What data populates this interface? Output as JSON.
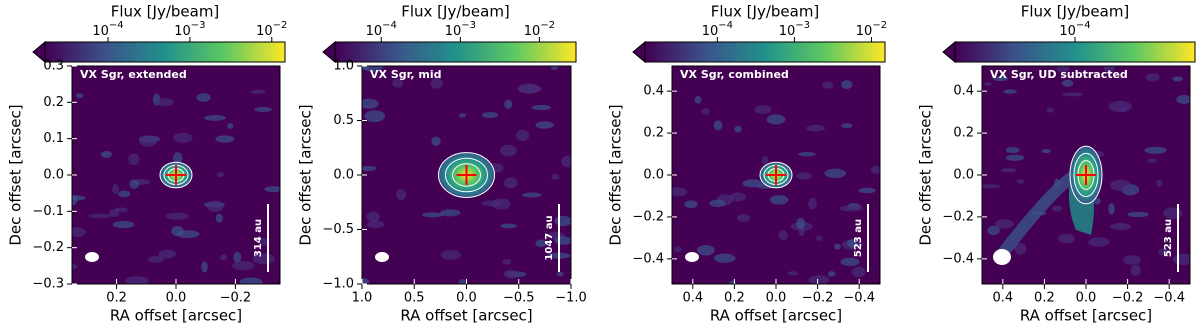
{
  "chart_data": [
    {
      "type": "image",
      "title": "VX Sgr, extended",
      "xlabel": "RA offset [arcsec]",
      "ylabel": "Dec offset [arcsec]",
      "xlim": [
        0.35,
        -0.35
      ],
      "ylim": [
        -0.3,
        0.3
      ],
      "xticks": [
        0.2,
        {
          "value": 0,
          "label": "0.0"
        },
        {
          "value": -0.2,
          "label": "−0.2"
        }
      ],
      "yticks": [
        {
          "value": -0.3,
          "label": "−0.3"
        },
        {
          "value": -0.2,
          "label": "−0.2"
        },
        {
          "value": -0.1,
          "label": "−0.1"
        },
        {
          "value": 0,
          "label": "0.0"
        },
        0.1,
        0.2,
        0.3
      ],
      "scalebar_label": "314 au",
      "colorbar": {
        "label": "Flux [Jy/beam]",
        "log": true,
        "lim": [
          1.7e-05,
          0.0145
        ],
        "colors": [
          "#440154",
          "#3b528b",
          "#21918c",
          "#5ec962",
          "#fde725"
        ],
        "ticks": [
          {
            "value": 0.0001,
            "label": "10−4"
          },
          {
            "value": 0.001,
            "label": "10−3"
          },
          {
            "value": 0.01,
            "label": "10−2"
          }
        ]
      }
    },
    {
      "type": "image",
      "title": "VX Sgr, mid",
      "xlabel": "RA offset [arcsec]",
      "ylabel": "Dec offset [arcsec]",
      "xlim": [
        1,
        -1
      ],
      "ylim": [
        -1,
        1
      ],
      "xticks": [
        {
          "value": 1,
          "label": "1.0"
        },
        0.5,
        {
          "value": 0,
          "label": "0.0"
        },
        {
          "value": -0.5,
          "label": "−0.5"
        },
        {
          "value": -1,
          "label": "−1.0"
        }
      ],
      "yticks": [
        {
          "value": -1,
          "label": "−1.0"
        },
        {
          "value": -0.5,
          "label": "−0.5"
        },
        {
          "value": 0,
          "label": "0.0"
        },
        0.5,
        {
          "value": 1,
          "label": "1.0"
        }
      ],
      "scalebar_label": "1047 au",
      "colorbar": {
        "label": "Flux [Jy/beam]",
        "log": true,
        "lim": [
          2.6e-05,
          0.029
        ],
        "colors": [
          "#440154",
          "#3b528b",
          "#21918c",
          "#5ec962",
          "#fde725"
        ],
        "ticks": [
          {
            "value": 0.0001,
            "label": "10−4"
          },
          {
            "value": 0.001,
            "label": "10−3"
          },
          {
            "value": 0.01,
            "label": "10−2"
          }
        ]
      }
    },
    {
      "type": "image",
      "title": "VX Sgr, combined",
      "xlabel": "RA offset [arcsec]",
      "ylabel": "Dec offset [arcsec]",
      "xlim": [
        0.5,
        -0.5
      ],
      "ylim": [
        -0.52,
        0.52
      ],
      "xticks": [
        0.4,
        0.2,
        {
          "value": 0,
          "label": "0.0"
        },
        {
          "value": -0.2,
          "label": "−0.2"
        },
        {
          "value": -0.4,
          "label": "−0.4"
        }
      ],
      "yticks": [
        {
          "value": -0.4,
          "label": "−0.4"
        },
        {
          "value": -0.2,
          "label": "−0.2"
        },
        {
          "value": 0,
          "label": "0.0"
        },
        0.2,
        0.4
      ],
      "scalebar_label": "523 au",
      "colorbar": {
        "label": "Flux [Jy/beam]",
        "log": true,
        "lim": [
          1.15e-05,
          0.015
        ],
        "colors": [
          "#440154",
          "#3b528b",
          "#21918c",
          "#5ec962",
          "#fde725"
        ],
        "ticks": [
          {
            "value": 0.0001,
            "label": "10−4"
          },
          {
            "value": 0.001,
            "label": "10−3"
          },
          {
            "value": 0.01,
            "label": "10−2"
          }
        ]
      }
    },
    {
      "type": "image",
      "title": "VX Sgr, UD subtracted",
      "xlabel": "RA offset [arcsec]",
      "ylabel": "Dec offset [arcsec]",
      "xlim": [
        0.5,
        -0.5
      ],
      "ylim": [
        -0.52,
        0.52
      ],
      "xticks": [
        0.4,
        0.2,
        {
          "value": 0,
          "label": "0.0"
        },
        {
          "value": -0.2,
          "label": "−0.2"
        },
        {
          "value": -0.4,
          "label": "−0.4"
        }
      ],
      "yticks": [
        {
          "value": -0.4,
          "label": "−0.4"
        },
        {
          "value": -0.2,
          "label": "−0.2"
        },
        {
          "value": 0,
          "label": "0.0"
        },
        0.2,
        0.4
      ],
      "scalebar_label": "523 au",
      "colorbar": {
        "label": "Flux [Jy/beam]",
        "log": true,
        "lim": [
          1e-05,
          0.001
        ],
        "colors": [
          "#440154",
          "#3b528b",
          "#21918c",
          "#5ec962",
          "#fde725"
        ],
        "ticks": [
          {
            "value": 0.0001,
            "label": "10−4"
          }
        ]
      }
    }
  ]
}
